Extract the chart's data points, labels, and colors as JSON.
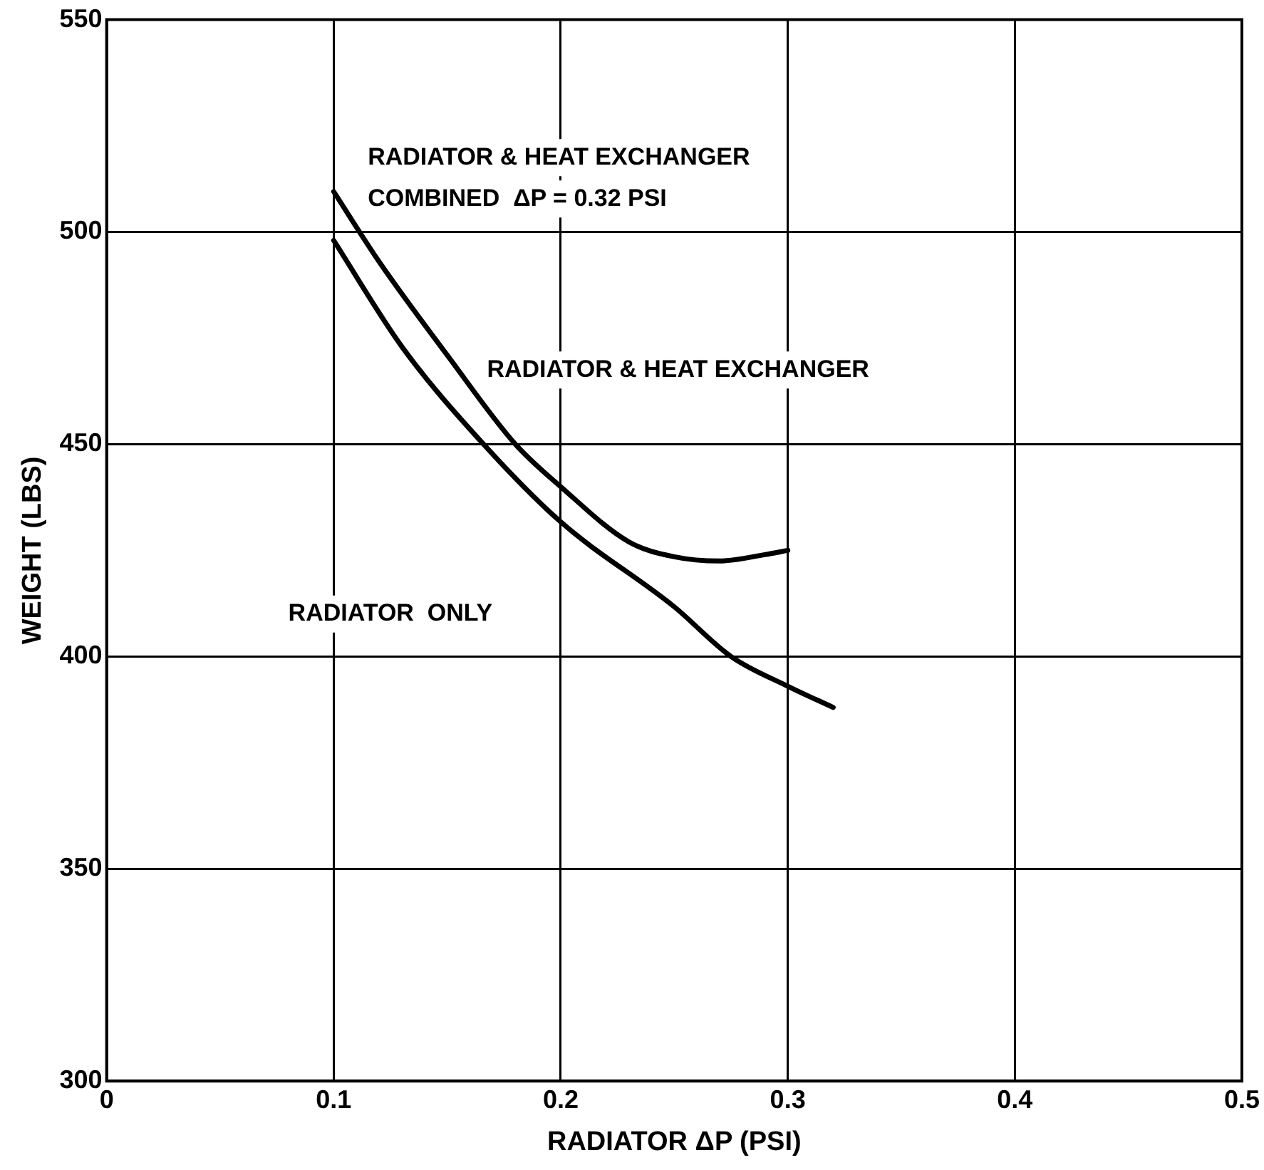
{
  "chart_data": {
    "type": "line",
    "xlabel": "RADIATOR ΔP (PSI)",
    "ylabel": "WEIGHT (LBS)",
    "xlim": [
      0,
      0.5
    ],
    "xticks": [
      0,
      0.1,
      0.2,
      0.3,
      0.4,
      0.5
    ],
    "ylim": [
      300,
      550
    ],
    "yticks": [
      300,
      350,
      400,
      450,
      500,
      550
    ],
    "grid": true,
    "legend": false,
    "marker": "none",
    "line_style": "solid",
    "series": [
      {
        "color": "#000000",
        "x": [
          0.1,
          0.12,
          0.15,
          0.18,
          0.2,
          0.23,
          0.25,
          0.27,
          0.29,
          0.3
        ],
        "values": [
          509.5,
          493,
          471,
          450,
          440,
          427,
          423.5,
          422.5,
          424,
          425
        ]
      },
      {
        "color": "#000000",
        "x": [
          0.1,
          0.13,
          0.166,
          0.2,
          0.25,
          0.275,
          0.3,
          0.32
        ],
        "values": [
          498,
          473,
          450,
          431.7,
          411.7,
          400,
          393,
          388
        ]
      }
    ],
    "annotations": [
      "RADIATOR & HEAT EXCHANGER\nCOMBINED  ΔP = 0.32 PSI",
      "RADIATOR & HEAT EXCHANGER",
      "RADIATOR  ONLY"
    ]
  }
}
